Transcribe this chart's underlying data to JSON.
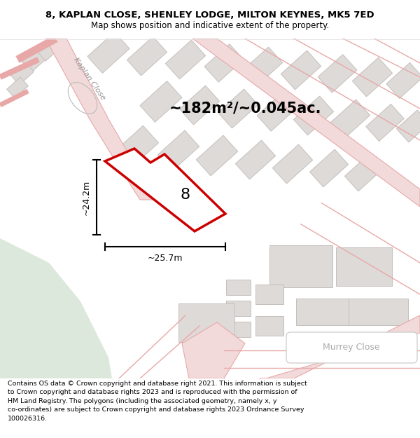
{
  "title_line1": "8, KAPLAN CLOSE, SHENLEY LODGE, MILTON KEYNES, MK5 7ED",
  "title_line2": "Map shows position and indicative extent of the property.",
  "area_label": "~182m²/~0.045ac.",
  "dim_h": "~24.2m",
  "dim_w": "~25.7m",
  "label_8": "8",
  "road_label1": "Kaplan Close",
  "road_label2": "Murrey Close",
  "footer": "Contains OS data © Crown copyright and database right 2021. This information is subject\nto Crown copyright and database rights 2023 and is reproduced with the permission of\nHM Land Registry. The polygons (including the associated geometry, namely x, y\nco-ordinates) are subject to Crown copyright and database rights 2023 Ordnance Survey\n100026316.",
  "map_bg": "#f5f0ed",
  "green_bg": "#dde8dc",
  "road_stroke": "#e8a8a8",
  "road_fill": "#f2dada",
  "building_fill": "#dedad8",
  "building_stroke": "#c5bfbc",
  "highlight_color": "#cc0000",
  "white": "#ffffff",
  "title_fontsize": 9.5,
  "subtitle_fontsize": 8.5,
  "area_fontsize": 15,
  "dim_fontsize": 9,
  "prop_num_fontsize": 16,
  "road_name_fontsize": 8,
  "footer_fontsize": 6.8,
  "murrey_fontsize": 9
}
